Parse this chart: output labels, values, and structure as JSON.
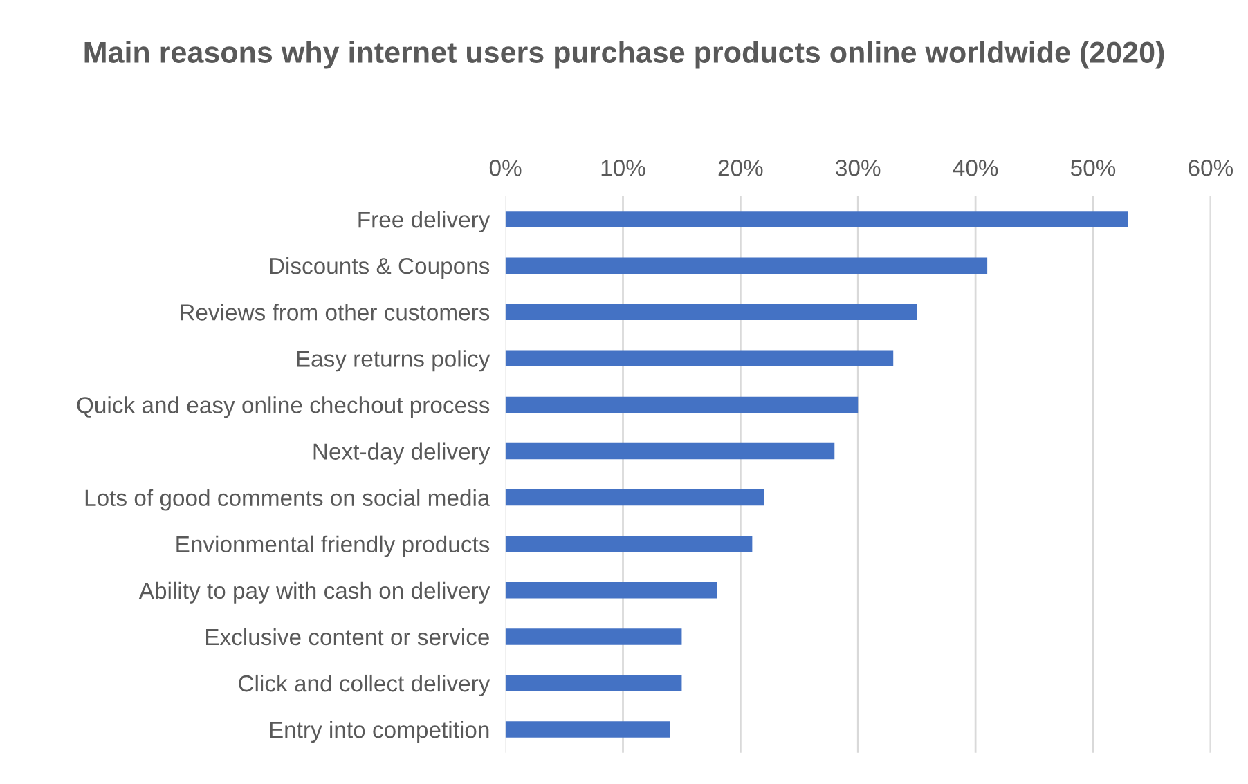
{
  "chart_data": {
    "type": "bar",
    "orientation": "horizontal",
    "title": "Main reasons why internet users purchase products online worldwide (2020)",
    "categories": [
      "Free delivery",
      "Discounts & Coupons",
      "Reviews from other customers",
      "Easy returns policy",
      "Quick and easy online chechout process",
      "Next-day delivery",
      "Lots of good comments on social media",
      "Envionmental friendly products",
      "Ability to pay with cash on delivery",
      "Exclusive content or service",
      "Click and collect delivery",
      "Entry into competition"
    ],
    "values": [
      53,
      41,
      35,
      33,
      30,
      28,
      22,
      21,
      18,
      15,
      15,
      14
    ],
    "color": "#4472c4",
    "xlim": [
      0,
      60
    ],
    "xticks": [
      {
        "value": 0,
        "label": "0%"
      },
      {
        "value": 10,
        "label": "10%"
      },
      {
        "value": 20,
        "label": "20%"
      },
      {
        "value": 30,
        "label": "30%"
      },
      {
        "value": 40,
        "label": "40%"
      },
      {
        "value": 50,
        "label": "50%"
      },
      {
        "value": 60,
        "label": "60%"
      }
    ],
    "grid": "x"
  }
}
